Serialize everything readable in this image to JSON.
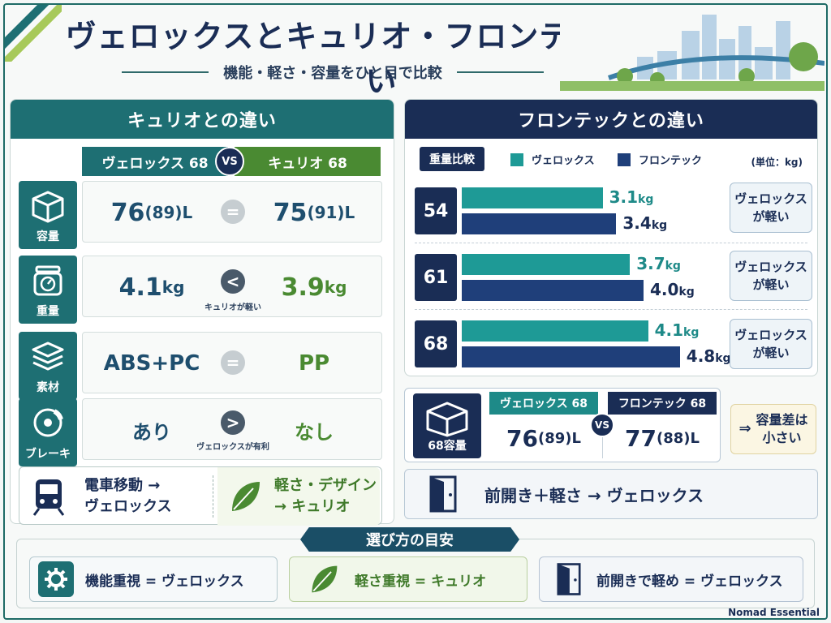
{
  "header": {
    "title": "ヴェロックスとキュリオ・フロンテックの違い",
    "subtitle": "機能・軽さ・容量をひと目で比較"
  },
  "left_panel": {
    "title": "キュリオとの違い",
    "vs_left": "ヴェロックス 68",
    "vs_badge": "VS",
    "vs_right": "キュリオ 68",
    "rows": [
      {
        "label": "容量",
        "icon": "box-icon",
        "left_main": "76",
        "left_sub": "(89)L",
        "right_main": "75",
        "right_sub": "(91)L",
        "compare": "=",
        "note": ""
      },
      {
        "label": "重量",
        "icon": "scale-icon",
        "left_main": "4.1",
        "left_sub": "kg",
        "right_main": "3.9",
        "right_sub": "kg",
        "compare": "<",
        "note": "キュリオが軽い"
      },
      {
        "label": "素材",
        "icon": "layers-icon",
        "left_main": "ABS+PC",
        "left_sub": "",
        "right_main": "PP",
        "right_sub": "",
        "compare": "=",
        "note": ""
      },
      {
        "label": "ブレーキ",
        "icon": "brake-icon",
        "left_main": "あり",
        "left_sub": "",
        "right_main": "なし",
        "right_sub": "",
        "compare": ">",
        "note": "ヴェロックスが有利"
      }
    ],
    "bottom_left_line1": "電車移動 →",
    "bottom_left_line2": "ヴェロックス",
    "bottom_right_line1": "軽さ・デザイン",
    "bottom_right_line2": "→ キュリオ"
  },
  "right_panel": {
    "title": "フロンテックとの違い",
    "weight_label": "重量比較",
    "legend_a": "ヴェロックス",
    "legend_b": "フロンテック",
    "unit": "(単位：kg)",
    "colors": {
      "velox": "#1e9a96",
      "frontec": "#1f3f7a"
    },
    "note_line1": "ヴェロックス",
    "note_line2": "が軽い",
    "capacity_label": "68容量",
    "capacity_left_head": "ヴェロックス 68",
    "capacity_vs": "VS",
    "capacity_right_head": "フロンテック 68",
    "capacity_left_main": "76",
    "capacity_left_sub": "(89)L",
    "capacity_right_main": "77",
    "capacity_right_sub": "(88)L",
    "capacity_note_arrow": "⇒",
    "capacity_note_line1": "容量差は",
    "capacity_note_line2": "小さい",
    "door_text": "前開き＋軽さ → ヴェロックス"
  },
  "chart_data": {
    "type": "bar",
    "categories": [
      "54",
      "61",
      "68"
    ],
    "series": [
      {
        "name": "ヴェロックス",
        "values": [
          3.1,
          3.7,
          4.1
        ]
      },
      {
        "name": "フロンテック",
        "values": [
          3.4,
          4.0,
          4.8
        ]
      }
    ],
    "value_labels": [
      [
        "3.1",
        "3.7",
        "4.1"
      ],
      [
        "3.4",
        "4.0",
        "4.8"
      ]
    ],
    "value_unit": "kg",
    "orientation": "horizontal"
  },
  "guide": {
    "title": "選び方の目安",
    "items": [
      {
        "text": "機能重視 = ヴェロックス",
        "icon": "gear-icon"
      },
      {
        "text": "軽さ重視 = キュリオ",
        "icon": "leaf-icon"
      },
      {
        "text": "前開きで軽め = ヴェロックス",
        "icon": "door-icon"
      }
    ]
  },
  "footer": "Nomad Essential"
}
